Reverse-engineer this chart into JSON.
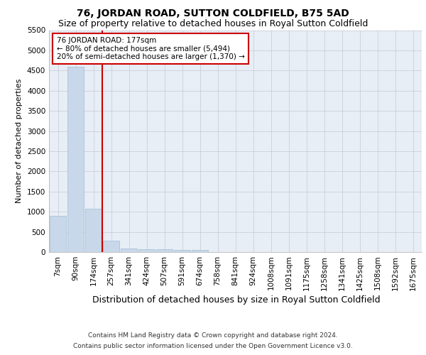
{
  "title": "76, JORDAN ROAD, SUTTON COLDFIELD, B75 5AD",
  "subtitle": "Size of property relative to detached houses in Royal Sutton Coldfield",
  "xlabel": "Distribution of detached houses by size in Royal Sutton Coldfield",
  "ylabel": "Number of detached properties",
  "categories": [
    "7sqm",
    "90sqm",
    "174sqm",
    "257sqm",
    "341sqm",
    "424sqm",
    "507sqm",
    "591sqm",
    "674sqm",
    "758sqm",
    "841sqm",
    "924sqm",
    "1008sqm",
    "1091sqm",
    "1175sqm",
    "1258sqm",
    "1341sqm",
    "1425sqm",
    "1508sqm",
    "1592sqm",
    "1675sqm"
  ],
  "values": [
    900,
    4600,
    1070,
    280,
    90,
    70,
    70,
    60,
    60,
    0,
    0,
    0,
    0,
    0,
    0,
    0,
    0,
    0,
    0,
    0,
    0
  ],
  "bar_color": "#c8d8ea",
  "bar_edgecolor": "#a0bcd4",
  "redline_x": 2.5,
  "annotation_title": "76 JORDAN ROAD: 177sqm",
  "annotation_line2": "← 80% of detached houses are smaller (5,494)",
  "annotation_line3": "20% of semi-detached houses are larger (1,370) →",
  "ylim": [
    0,
    5500
  ],
  "yticks": [
    0,
    500,
    1000,
    1500,
    2000,
    2500,
    3000,
    3500,
    4000,
    4500,
    5000,
    5500
  ],
  "footer_line1": "Contains HM Land Registry data © Crown copyright and database right 2024.",
  "footer_line2": "Contains public sector information licensed under the Open Government Licence v3.0.",
  "title_fontsize": 10,
  "subtitle_fontsize": 9,
  "axis_label_fontsize": 8,
  "tick_fontsize": 7.5,
  "annotation_fontsize": 7.5,
  "footer_fontsize": 6.5,
  "xlabel_fontsize": 9,
  "background_color": "#ffffff",
  "plot_bg_color": "#e8eef5",
  "grid_color": "#c8c8d8",
  "annotation_box_facecolor": "#ffffff",
  "annotation_box_edgecolor": "#cc0000",
  "redline_color": "#cc0000"
}
